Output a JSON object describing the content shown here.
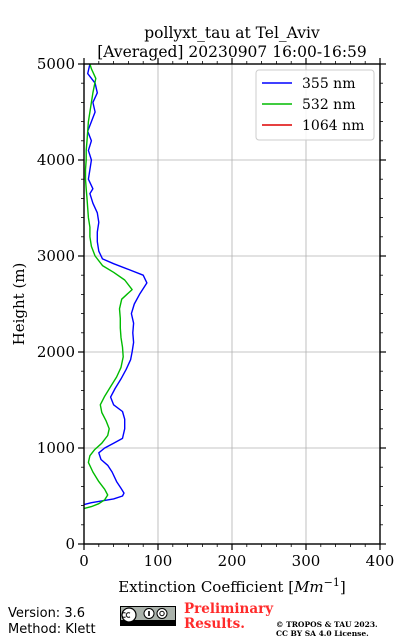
{
  "chart_data": {
    "type": "line",
    "title": "pollyxt_tau at Tel_Aviv",
    "subtitle": "[Averaged] 20230907 16:00-16:59",
    "xlabel_main": "Extinction Coefficient [",
    "xlabel_unit": "Mm",
    "xlabel_exp": "−1",
    "xlabel_close": "]",
    "ylabel": "Height (m)",
    "xlim": [
      0,
      400
    ],
    "ylim": [
      0,
      5000
    ],
    "xticks": [
      0,
      100,
      200,
      300,
      400
    ],
    "yticks": [
      0,
      1000,
      2000,
      3000,
      4000,
      5000
    ],
    "grid": true,
    "legend_position": "top-right",
    "series": [
      {
        "name": "355 nm",
        "color": "#0000ff",
        "points": [
          [
            0,
            410
          ],
          [
            10,
            430
          ],
          [
            25,
            450
          ],
          [
            40,
            470
          ],
          [
            52,
            500
          ],
          [
            54,
            530
          ],
          [
            50,
            580
          ],
          [
            44,
            650
          ],
          [
            38,
            750
          ],
          [
            32,
            820
          ],
          [
            23,
            880
          ],
          [
            20,
            950
          ],
          [
            28,
            1000
          ],
          [
            40,
            1050
          ],
          [
            52,
            1100
          ],
          [
            55,
            1200
          ],
          [
            55,
            1300
          ],
          [
            52,
            1380
          ],
          [
            40,
            1450
          ],
          [
            36,
            1530
          ],
          [
            42,
            1620
          ],
          [
            50,
            1720
          ],
          [
            57,
            1820
          ],
          [
            63,
            1920
          ],
          [
            65,
            2000
          ],
          [
            67,
            2100
          ],
          [
            66,
            2200
          ],
          [
            67,
            2300
          ],
          [
            64,
            2400
          ],
          [
            68,
            2500
          ],
          [
            75,
            2600
          ],
          [
            85,
            2720
          ],
          [
            80,
            2800
          ],
          [
            60,
            2860
          ],
          [
            40,
            2920
          ],
          [
            25,
            2970
          ],
          [
            20,
            3050
          ],
          [
            18,
            3150
          ],
          [
            18,
            3250
          ],
          [
            20,
            3350
          ],
          [
            18,
            3450
          ],
          [
            12,
            3550
          ],
          [
            8,
            3650
          ],
          [
            12,
            3700
          ],
          [
            6,
            3800
          ],
          [
            8,
            3900
          ],
          [
            10,
            4000
          ],
          [
            6,
            4100
          ],
          [
            10,
            4200
          ],
          [
            5,
            4300
          ],
          [
            10,
            4400
          ],
          [
            15,
            4500
          ],
          [
            12,
            4600
          ],
          [
            18,
            4700
          ],
          [
            15,
            4800
          ],
          [
            5,
            4900
          ],
          [
            8,
            5000
          ]
        ]
      },
      {
        "name": "532 nm",
        "color": "#00bb00",
        "points": [
          [
            0,
            370
          ],
          [
            10,
            390
          ],
          [
            20,
            420
          ],
          [
            28,
            460
          ],
          [
            32,
            510
          ],
          [
            28,
            570
          ],
          [
            20,
            650
          ],
          [
            12,
            750
          ],
          [
            6,
            850
          ],
          [
            8,
            920
          ],
          [
            14,
            980
          ],
          [
            24,
            1050
          ],
          [
            32,
            1130
          ],
          [
            34,
            1200
          ],
          [
            30,
            1280
          ],
          [
            24,
            1370
          ],
          [
            22,
            1450
          ],
          [
            28,
            1540
          ],
          [
            36,
            1640
          ],
          [
            44,
            1740
          ],
          [
            50,
            1840
          ],
          [
            53,
            1950
          ],
          [
            52,
            2050
          ],
          [
            50,
            2150
          ],
          [
            49,
            2250
          ],
          [
            49,
            2350
          ],
          [
            48,
            2450
          ],
          [
            51,
            2550
          ],
          [
            65,
            2650
          ],
          [
            55,
            2750
          ],
          [
            40,
            2830
          ],
          [
            25,
            2900
          ],
          [
            15,
            3000
          ],
          [
            10,
            3100
          ],
          [
            8,
            3200
          ],
          [
            8,
            3300
          ],
          [
            6,
            3400
          ],
          [
            5,
            3500
          ],
          [
            4,
            3600
          ],
          [
            3,
            3700
          ],
          [
            2,
            3800
          ],
          [
            2,
            3900
          ],
          [
            3,
            4000
          ],
          [
            3,
            4100
          ],
          [
            4,
            4200
          ],
          [
            5,
            4300
          ],
          [
            6,
            4400
          ],
          [
            8,
            4500
          ],
          [
            10,
            4600
          ],
          [
            12,
            4700
          ],
          [
            16,
            4850
          ],
          [
            10,
            4950
          ],
          [
            8,
            5000
          ]
        ]
      },
      {
        "name": "1064 nm",
        "color": "#dd0000",
        "points": []
      }
    ]
  },
  "footer": {
    "version": "Version: 3.6",
    "method": "Method: Klett",
    "preliminary_line1": "Preliminary",
    "preliminary_line2": "Results.",
    "copyright_line1": "© TROPOS & TAU 2023.",
    "copyright_line2": "CC BY SA 4.0 License."
  }
}
